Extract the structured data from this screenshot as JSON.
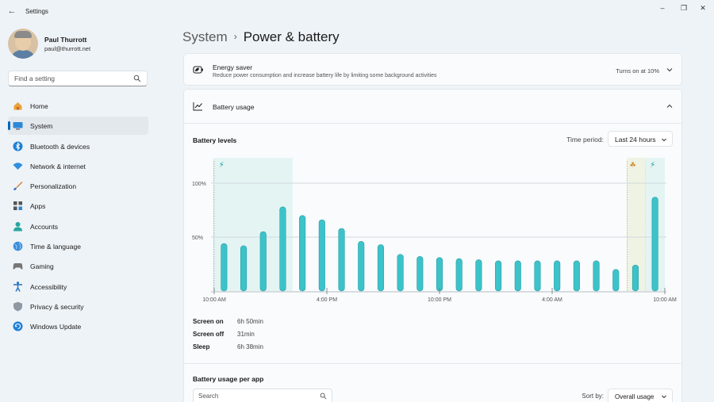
{
  "window": {
    "title": "Settings",
    "controls": {
      "minimize": "–",
      "maximize": "❐",
      "close": "✕"
    }
  },
  "user": {
    "name": "Paul Thurrott",
    "email": "paul@thurrott.net"
  },
  "search": {
    "placeholder": "Find a setting"
  },
  "nav": [
    {
      "label": "Home",
      "icon": "home-icon",
      "active": false
    },
    {
      "label": "System",
      "icon": "system-icon",
      "active": true
    },
    {
      "label": "Bluetooth & devices",
      "icon": "bluetooth-icon",
      "active": false
    },
    {
      "label": "Network & internet",
      "icon": "network-icon",
      "active": false
    },
    {
      "label": "Personalization",
      "icon": "brush-icon",
      "active": false
    },
    {
      "label": "Apps",
      "icon": "apps-icon",
      "active": false
    },
    {
      "label": "Accounts",
      "icon": "accounts-icon",
      "active": false
    },
    {
      "label": "Time & language",
      "icon": "globe-icon",
      "active": false
    },
    {
      "label": "Gaming",
      "icon": "gaming-icon",
      "active": false
    },
    {
      "label": "Accessibility",
      "icon": "accessibility-icon",
      "active": false
    },
    {
      "label": "Privacy & security",
      "icon": "shield-icon",
      "active": false
    },
    {
      "label": "Windows Update",
      "icon": "update-icon",
      "active": false
    }
  ],
  "breadcrumb": {
    "parent": "System",
    "separator": "›",
    "current": "Power & battery"
  },
  "energy_saver": {
    "title": "Energy saver",
    "description": "Reduce power consumption and increase battery life by limiting some background activities",
    "status": "Turns on at 10%"
  },
  "battery_usage": {
    "title": "Battery usage",
    "levels_title": "Battery levels",
    "time_period_label": "Time period:",
    "time_period_value": "Last 24 hours",
    "stats": [
      {
        "label": "Screen on",
        "value": "6h 50min"
      },
      {
        "label": "Screen off",
        "value": "31min"
      },
      {
        "label": "Sleep",
        "value": "6h 38min"
      }
    ],
    "per_app_title": "Battery usage per app",
    "app_search_placeholder": "Search",
    "sort_label": "Sort by:",
    "sort_value": "Overall usage"
  },
  "colors": {
    "bar": "#3cc3c9",
    "bar_dark": "#2a9ea6",
    "charging_band": "#e3f4f3",
    "saver_band": "#eef3e3",
    "accent": "#0067c0"
  },
  "chart_data": {
    "type": "bar",
    "y_tick_labels": [
      "100%",
      "50%"
    ],
    "x_tick_labels": [
      "10:00 AM",
      "4:00 PM",
      "10:00 PM",
      "4:00 AM",
      "10:00 AM"
    ],
    "ylim": [
      0,
      100
    ],
    "values": [
      44,
      42,
      55,
      78,
      70,
      66,
      58,
      46,
      43,
      34,
      32,
      31,
      30,
      29,
      28,
      28,
      28,
      28,
      28,
      28,
      20,
      24,
      87
    ],
    "charging_intervals": [
      [
        0,
        3
      ],
      [
        22,
        22
      ]
    ],
    "energy_saver_intervals": [
      [
        21,
        21
      ]
    ],
    "grid": true
  }
}
